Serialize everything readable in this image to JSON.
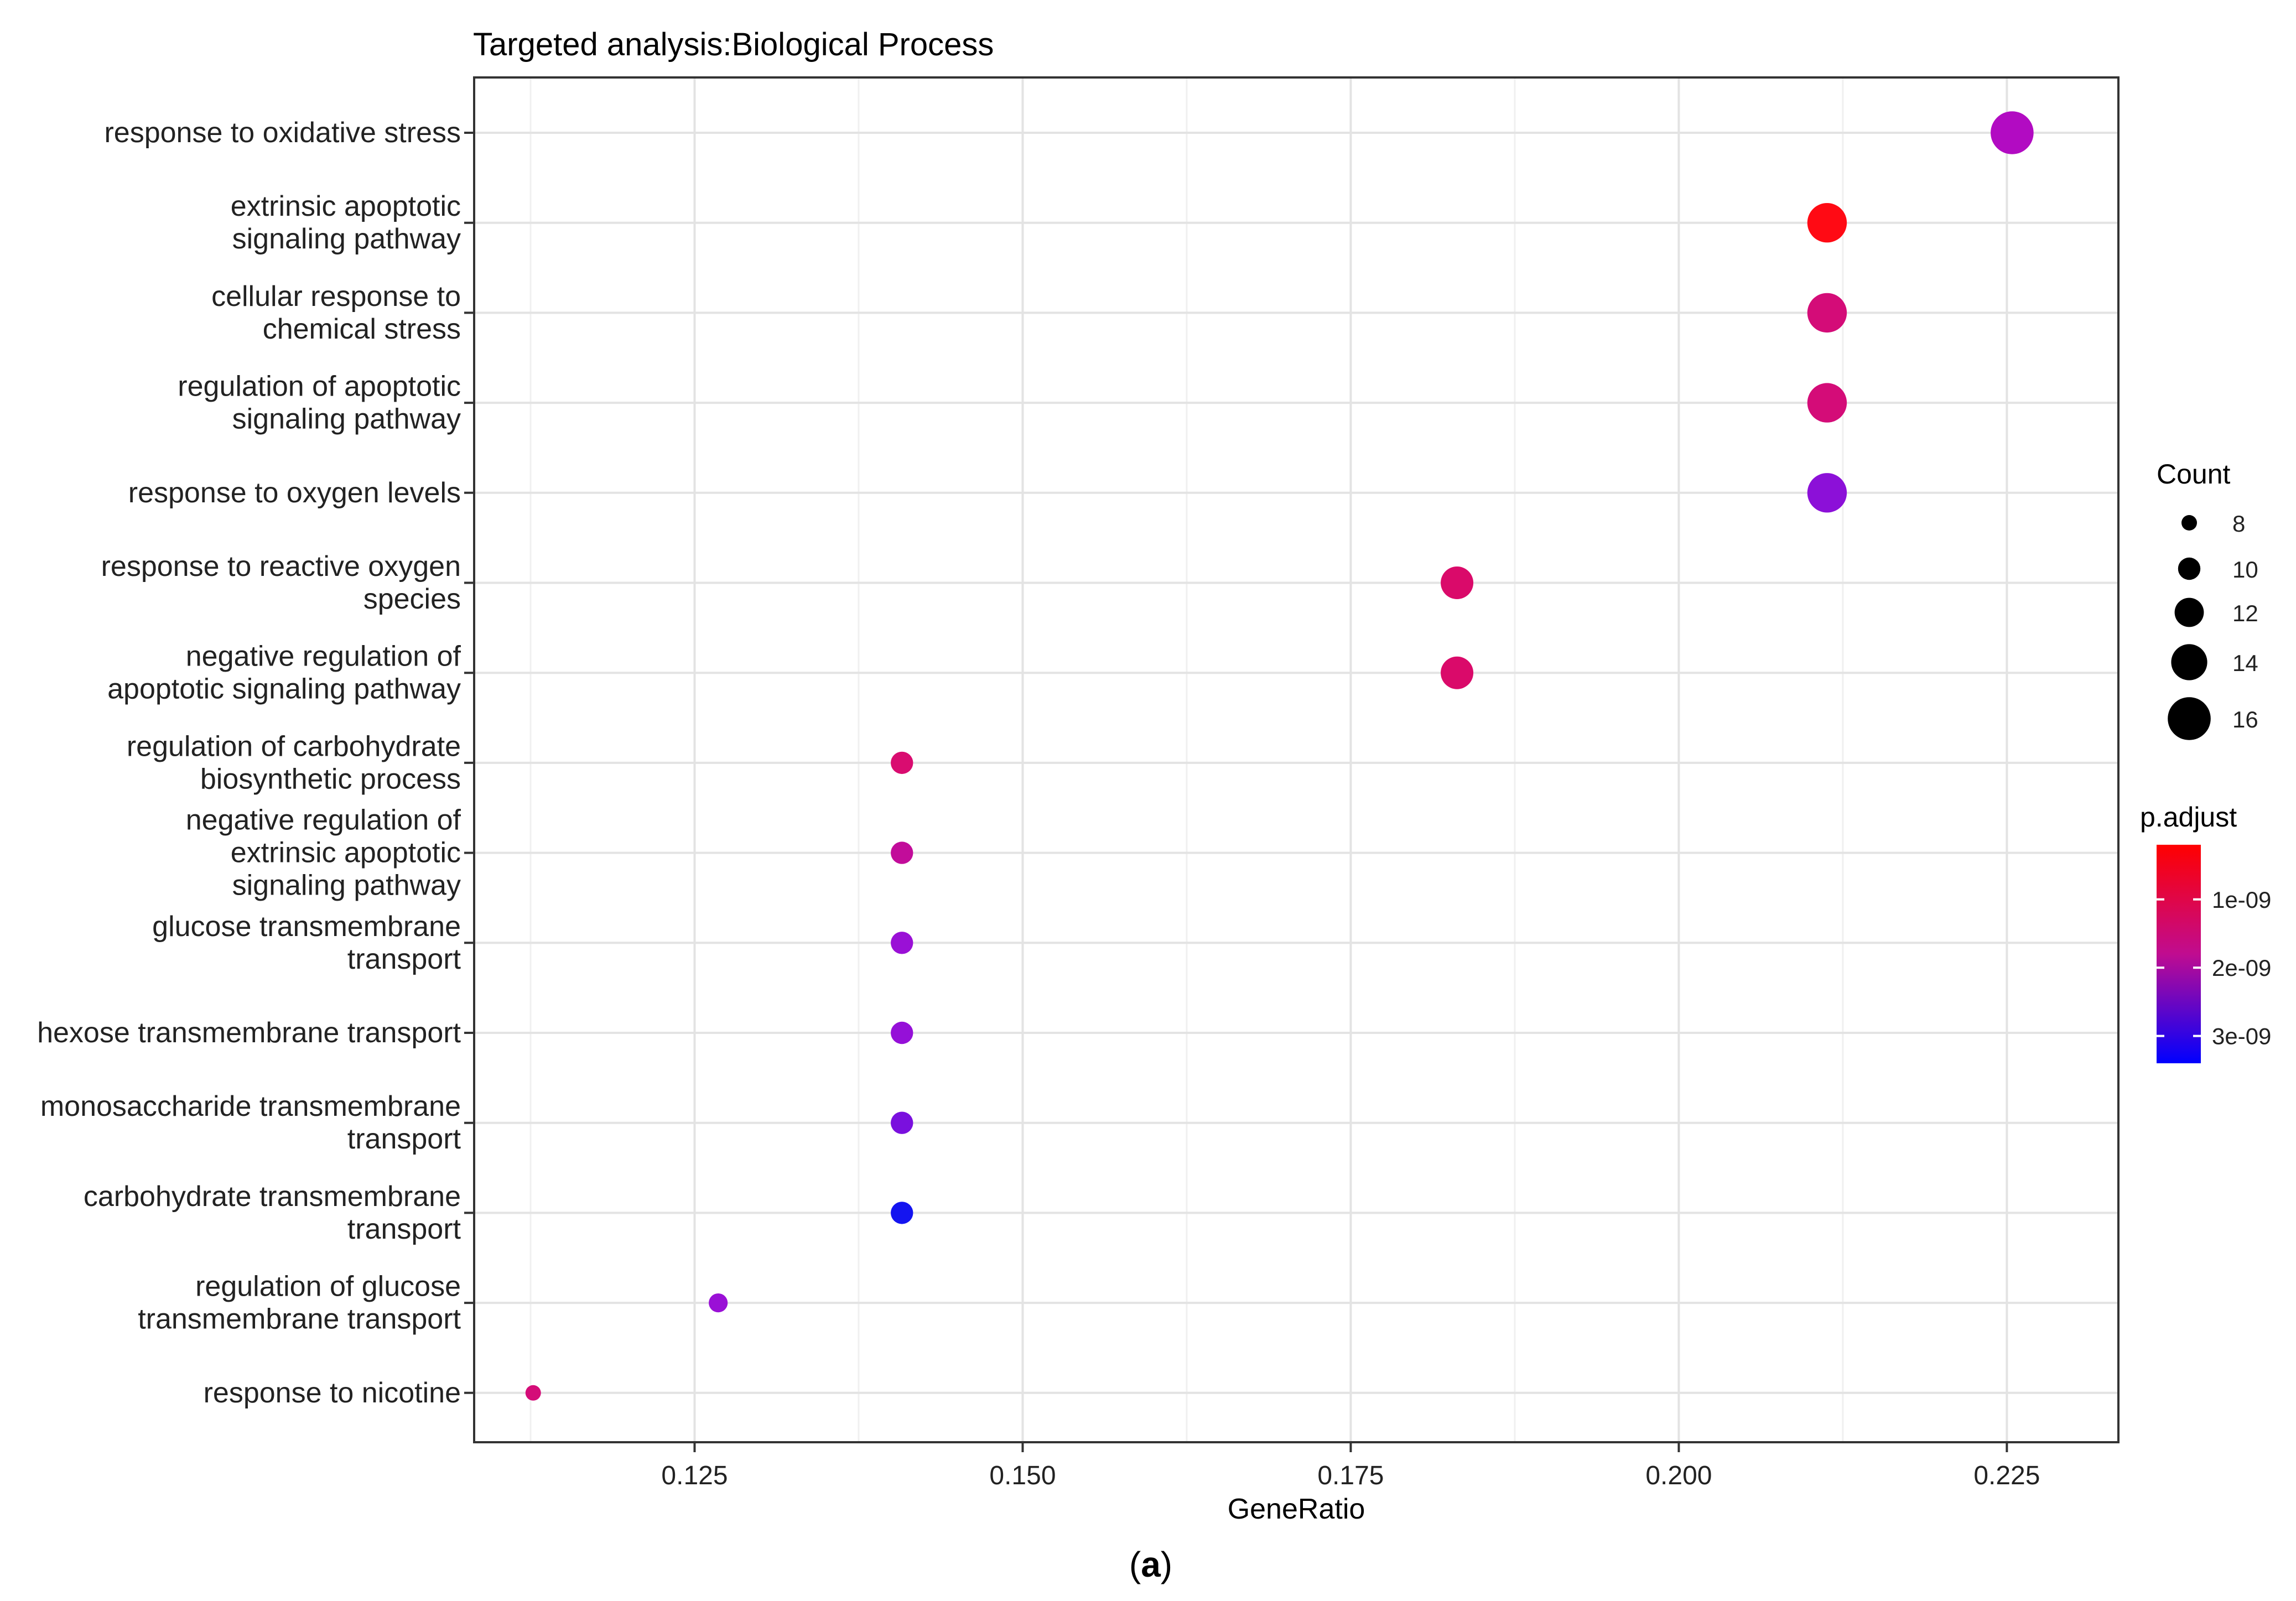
{
  "chart_data": {
    "type": "scatter",
    "title": "Targeted analysis:Biological Process",
    "xlabel": "GeneRatio",
    "ylabel": "",
    "xlim": [
      0.1082,
      0.2335
    ],
    "x_ticks": [
      "0.125",
      "0.150",
      "0.175",
      "0.200",
      "0.225"
    ],
    "x_tick_values": [
      0.125,
      0.15,
      0.175,
      0.2,
      0.225
    ],
    "grid": true,
    "categories": [
      "response to oxidative stress",
      "extrinsic apoptotic\nsignaling pathway",
      "cellular response to\nchemical stress",
      "regulation of apoptotic\nsignaling pathway",
      "response to oxygen levels",
      "response to reactive oxygen\nspecies",
      "negative regulation of\napoptotic signaling pathway",
      "regulation of carbohydrate\nbiosynthetic process",
      "negative regulation of\nextrinsic apoptotic\nsignaling pathway",
      "glucose transmembrane\ntransport",
      "hexose transmembrane transport",
      "monosaccharide transmembrane\ntransport",
      "carbohydrate transmembrane\ntransport",
      "regulation of glucose\ntransmembrane transport",
      "response to nicotine"
    ],
    "points": [
      {
        "gene_ratio": 0.2254,
        "count": 16,
        "p_adjust": 2e-09,
        "color": "#B20BC2"
      },
      {
        "gene_ratio": 0.2113,
        "count": 15,
        "p_adjust": 4e-10,
        "color": "#FF0A14"
      },
      {
        "gene_ratio": 0.2113,
        "count": 15,
        "p_adjust": 1.3e-09,
        "color": "#D40C78"
      },
      {
        "gene_ratio": 0.2113,
        "count": 15,
        "p_adjust": 1.3e-09,
        "color": "#D40C78"
      },
      {
        "gene_ratio": 0.2113,
        "count": 15,
        "p_adjust": 2.6e-09,
        "color": "#8C10D8"
      },
      {
        "gene_ratio": 0.1831,
        "count": 13,
        "p_adjust": 1.2e-09,
        "color": "#DA0A6A"
      },
      {
        "gene_ratio": 0.1831,
        "count": 13,
        "p_adjust": 1.2e-09,
        "color": "#DA0A6A"
      },
      {
        "gene_ratio": 0.1408,
        "count": 10,
        "p_adjust": 1.3e-09,
        "color": "#D90C70"
      },
      {
        "gene_ratio": 0.1408,
        "count": 10,
        "p_adjust": 1.7e-09,
        "color": "#C20C9A"
      },
      {
        "gene_ratio": 0.1408,
        "count": 10,
        "p_adjust": 2.4e-09,
        "color": "#9A10D6"
      },
      {
        "gene_ratio": 0.1408,
        "count": 10,
        "p_adjust": 2.5e-09,
        "color": "#9510D8"
      },
      {
        "gene_ratio": 0.1408,
        "count": 10,
        "p_adjust": 2.8e-09,
        "color": "#7A10DE"
      },
      {
        "gene_ratio": 0.1408,
        "count": 10,
        "p_adjust": 3.3e-09,
        "color": "#1414F0"
      },
      {
        "gene_ratio": 0.1268,
        "count": 9,
        "p_adjust": 2.4e-09,
        "color": "#9A10D6"
      },
      {
        "gene_ratio": 0.1127,
        "count": 8,
        "p_adjust": 1.3e-09,
        "color": "#D40C78"
      }
    ],
    "legend_count": {
      "title": "Count",
      "labels": [
        "8",
        "10",
        "12",
        "14",
        "16"
      ],
      "values": [
        8,
        10,
        12,
        14,
        16
      ]
    },
    "legend_color": {
      "title": "p.adjust",
      "labels": [
        "1e-09",
        "2e-09",
        "3e-09"
      ],
      "values": [
        1e-09,
        2e-09,
        3e-09
      ],
      "range": [
        2e-10,
        3.4e-09
      ],
      "low_color": "#FF0000",
      "high_color": "#0000FF",
      "legend_position": "right"
    }
  },
  "caption": {
    "open": "(",
    "letter": "a",
    "close": ")"
  }
}
